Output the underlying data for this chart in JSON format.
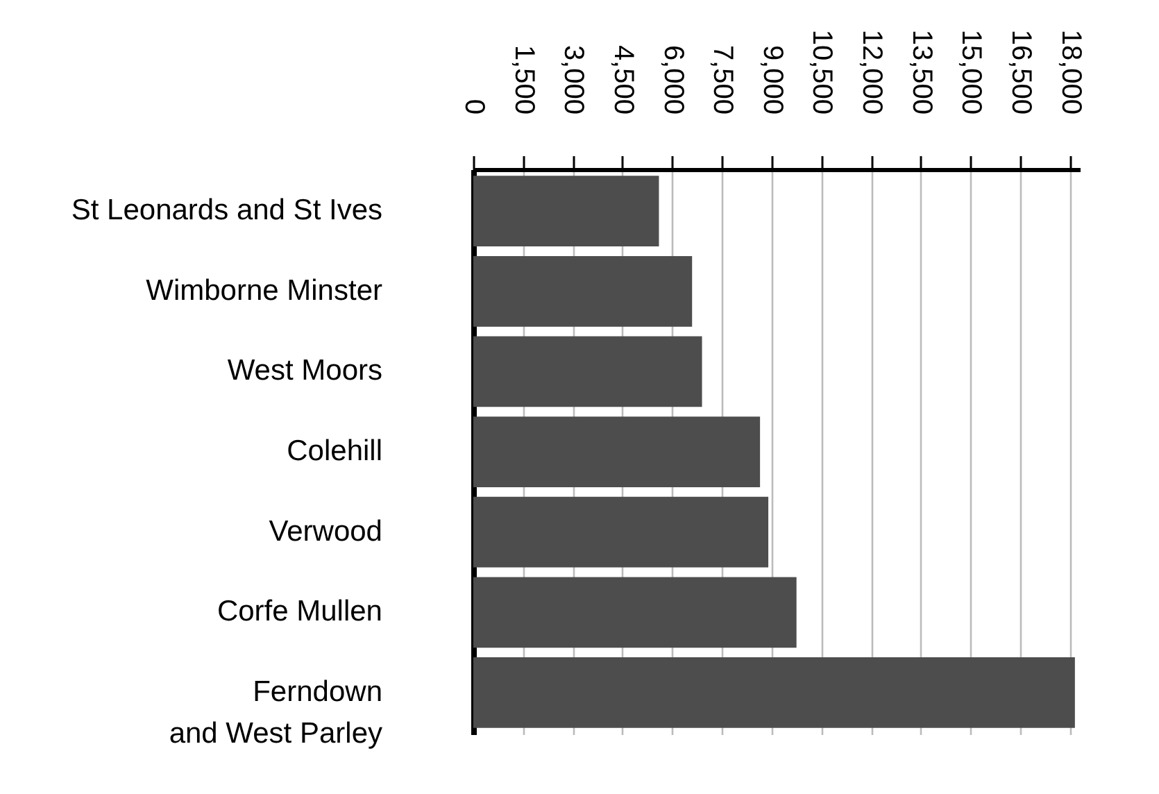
{
  "chart_data": {
    "type": "bar",
    "orientation": "horizontal",
    "categories": [
      "St Leonards and St Ives",
      "Wimborne Minster",
      "West Moors",
      "Colehill",
      "Verwood",
      "Corfe Mullen",
      "Ferndown\nand West Parley"
    ],
    "values": [
      5600,
      6600,
      6900,
      8650,
      8900,
      9750,
      18150
    ],
    "color": "#4d4d4d",
    "xlim": [
      0,
      18300
    ],
    "xticks": [
      0,
      {
        "value": 1500,
        "label": "1,500"
      },
      {
        "value": 3000,
        "label": "3,000"
      },
      {
        "value": 4500,
        "label": "4,500"
      },
      {
        "value": 6000,
        "label": "6,000"
      },
      {
        "value": 7500,
        "label": "7,500"
      },
      {
        "value": 9000,
        "label": "9,000"
      },
      {
        "value": 10500,
        "label": "10,500"
      },
      {
        "value": 12000,
        "label": "12,000"
      },
      {
        "value": 13500,
        "label": "13,500"
      },
      {
        "value": 15000,
        "label": "15,000"
      },
      {
        "value": 16500,
        "label": "16,500"
      },
      {
        "value": 18000,
        "label": "18,000"
      }
    ],
    "grid": "x"
  }
}
